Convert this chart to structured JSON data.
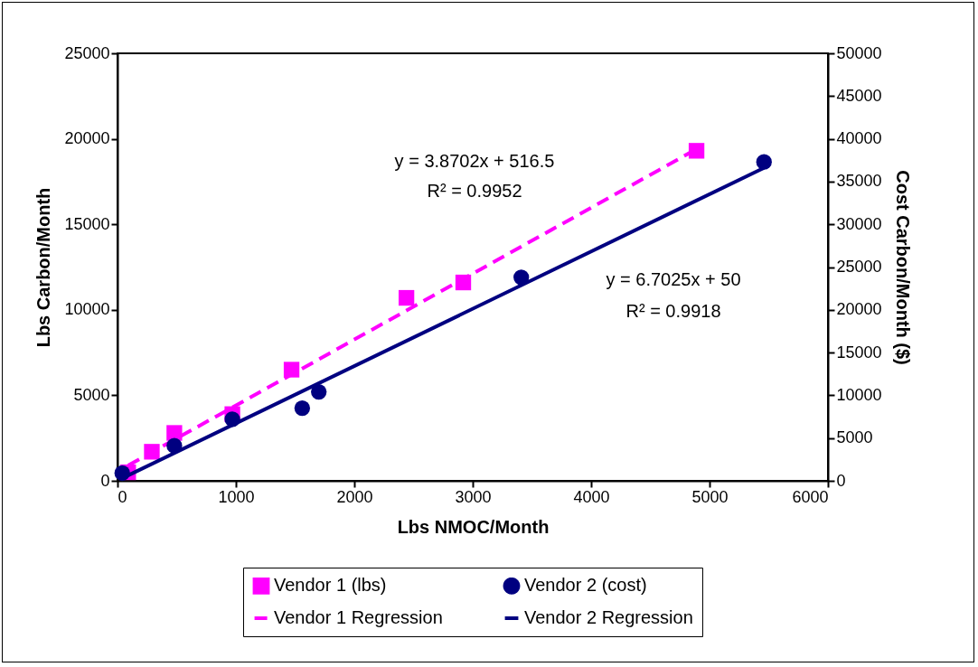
{
  "chart_data": {
    "type": "scatter",
    "xlabel": "Lbs NMOC/Month",
    "ylabel": "Lbs Carbon/Month",
    "y2label": "Cost Carbon/Month ($)",
    "xlim": [
      0,
      6000
    ],
    "xticks": [
      0,
      1000,
      2000,
      3000,
      4000,
      5000,
      6000
    ],
    "ylim": [
      0,
      25000
    ],
    "yticks": [
      0,
      5000,
      10000,
      15000,
      20000,
      25000
    ],
    "y2lim": [
      0,
      50000
    ],
    "y2ticks": [
      0,
      5000,
      10000,
      15000,
      20000,
      25000,
      30000,
      35000,
      40000,
      45000,
      50000
    ],
    "grid": false,
    "legend": "bottom",
    "series": [
      {
        "name": "Vendor 1 (lbs)",
        "marker": "square",
        "color": "#ff00ff",
        "x": [
          90,
          290,
          480,
          970,
          1470,
          2440,
          2920,
          4890
        ],
        "values": [
          500,
          1700,
          2800,
          3900,
          6500,
          10700,
          11600,
          19300
        ]
      },
      {
        "name": "Vendor 2 (cost)",
        "marker": "circle",
        "color": "#000080",
        "axis": "y2",
        "x": [
          40,
          480,
          970,
          1560,
          1700,
          3410,
          5460
        ],
        "values": [
          900,
          4100,
          7200,
          8500,
          10400,
          23800,
          37300
        ]
      },
      {
        "name": "Vendor 1 Regression",
        "type": "line",
        "line_style": "dashed",
        "color": "#ff00ff",
        "x": [
          90,
          4890
        ],
        "values": [
          900,
          19400
        ]
      },
      {
        "name": "Vendor 2 Regression",
        "type": "line",
        "line_style": "solid",
        "color": "#000080",
        "axis": "y2",
        "x": [
          40,
          5460
        ],
        "values": [
          300,
          36600
        ]
      }
    ],
    "annotations": [
      "y = 3.8702x + 516.5",
      "R² = 0.9952",
      "y = 6.7025x + 50",
      "R² = 0.9918"
    ]
  }
}
